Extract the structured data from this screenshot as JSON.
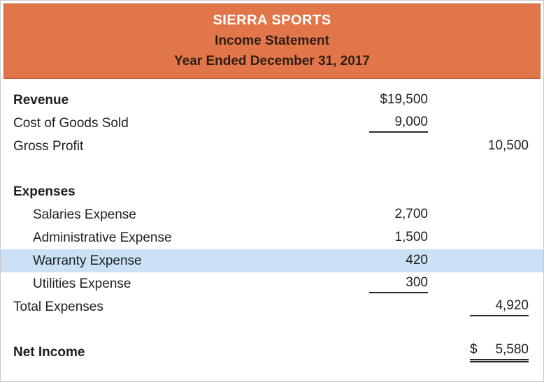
{
  "colors": {
    "header_bg": "#E1764B",
    "header_border": "#BC5A2F",
    "header_title": "#FFFFFF",
    "header_subtitle": "#2F1D12",
    "highlight": "#CBE2F6",
    "text": "#1E1E1E"
  },
  "header": {
    "company": "SIERRA SPORTS",
    "statement": "Income Statement",
    "period": "Year Ended December 31, 2017"
  },
  "rows": [
    {
      "label": "Revenue",
      "mid": "$19,500",
      "right": ""
    },
    {
      "label": "Cost of Goods Sold",
      "mid": "9,000",
      "right": ""
    },
    {
      "label": "Gross Profit",
      "mid": "",
      "right": "10,500"
    },
    {
      "label": "Expenses",
      "mid": "",
      "right": ""
    },
    {
      "label": "Salaries Expense",
      "mid": "2,700",
      "right": ""
    },
    {
      "label": "Administrative Expense",
      "mid": "1,500",
      "right": ""
    },
    {
      "label": "Warranty Expense",
      "mid": "420",
      "right": ""
    },
    {
      "label": "Utilities Expense",
      "mid": "300",
      "right": ""
    },
    {
      "label": "Total Expenses",
      "mid": "",
      "right": "4,920"
    },
    {
      "label": "Net Income",
      "mid": "",
      "right": "5,580",
      "right_prefix": "$"
    }
  ]
}
